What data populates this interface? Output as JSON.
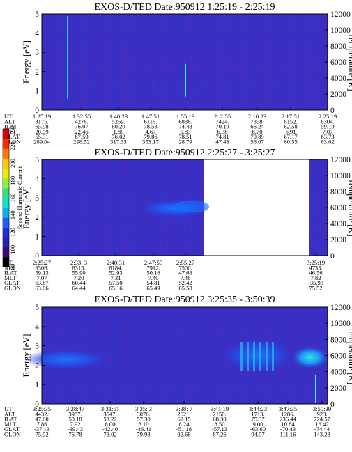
{
  "chart_data": [
    {
      "type": "heatmap",
      "title": "EXOS-D/TED   Date:950912  1:25:19 - 2:25:19",
      "ylabel": "Energy [eV]",
      "ylabel_right": "Temperature [K]",
      "ylim": [
        0,
        5
      ],
      "ylim_right": [
        0,
        12000
      ],
      "yticks": [
        "0",
        "1",
        "2",
        "3",
        "4",
        "5"
      ],
      "yticks_right": [
        "0",
        "2000",
        "4000",
        "6000",
        "8000",
        "10000",
        "12000"
      ],
      "table": {
        "row_labels": [
          "UT",
          "ALT",
          "ILAT",
          "MLT",
          "GLAT",
          "GLON"
        ],
        "columns": [
          [
            "1:25:19",
            "3175.",
            "65.98",
            "20.99",
            "55.31",
            "289.04"
          ],
          [
            "1:32:55",
            "4276.",
            "76.07",
            "22.46",
            "67.59",
            "298.52"
          ],
          [
            "1:40:23",
            "5259.",
            "80.29",
            "1.80",
            "76.02",
            "317.33"
          ],
          [
            "1:47:51",
            "6116.",
            "78.53",
            "4.67",
            "79.86",
            "353.17"
          ],
          [
            "1:55:19",
            "6836.",
            "74.48",
            "5.83",
            "78.51",
            "28.79"
          ],
          [
            "2: 2:55",
            "7424.",
            "70.19",
            "6.38",
            "74.81",
            "47.43"
          ],
          [
            "2:10:23",
            "7858.",
            "66.24",
            "6.70",
            "70.89",
            "56.07"
          ],
          [
            "2:17:51",
            "8152.",
            "62.58",
            "6.91",
            "67.17",
            "60.55"
          ],
          [
            "2:25:19",
            "8304.",
            "59.19",
            "7.07",
            "63.73",
            "63.02"
          ]
        ]
      }
    },
    {
      "type": "heatmap",
      "title": "EXOS-D/TED   Date:950912  2:25:27 - 3:25:27",
      "ylabel": "Energy [eV]",
      "ylabel_right": "Temperature [K]",
      "ylim": [
        0,
        5
      ],
      "ylim_right": [
        0,
        12000
      ],
      "yticks": [
        "0",
        "1",
        "2",
        "3",
        "4",
        "5"
      ],
      "yticks_right": [
        "0",
        "2000",
        "4000",
        "6000",
        "8000",
        "10000",
        "12000"
      ],
      "data_gap": true,
      "table": {
        "row_labels": [
          "UT",
          "ALT",
          "ILAT",
          "MLT",
          "GLAT",
          "GLON"
        ],
        "columns": [
          [
            "2:25:27",
            "8306.",
            "59.13",
            "7.07",
            "63.67",
            "63.06"
          ],
          [
            "2:33: 3",
            "8315.",
            "55.90",
            "7.20",
            "60.44",
            "64.44"
          ],
          [
            "2:40:31",
            "8184.",
            "52.93",
            "7.31",
            "57.50",
            "65.16"
          ],
          [
            "2:47:59",
            "7912.",
            "50.16",
            "7.40",
            "54.81",
            "65.49"
          ],
          [
            "2:55:27",
            "7500.",
            "47.68",
            "7.48",
            "52.42",
            "65.58"
          ],
          [
            "3:25:19",
            "4735.",
            "46.56",
            "7.82",
            "-35.93",
            "75.52"
          ]
        ]
      }
    },
    {
      "type": "heatmap",
      "title": "EXOS-D/TED   Date:950912  3:25:35 - 3:50:39",
      "ylabel": "Energy [eV]",
      "ylabel_right": "Temperature [K]",
      "ylim": [
        0,
        5
      ],
      "ylim_right": [
        0,
        12000
      ],
      "yticks": [
        "0",
        "1",
        "2",
        "3",
        "4",
        "5"
      ],
      "yticks_right": [
        "0",
        "2000",
        "4000",
        "6000",
        "8000",
        "10000",
        "12000"
      ],
      "table": {
        "row_labels": [
          "UT",
          "ALT",
          "ILAT",
          "MLT",
          "GLAT",
          "GLON"
        ],
        "columns": [
          [
            "3:25:35",
            "4432.",
            "47.80",
            "7.86",
            "-37.13",
            "75.92"
          ],
          [
            "3:28:47",
            "3987.",
            "50.18",
            "7.92",
            "-39.43",
            "76.78"
          ],
          [
            "3:31:51",
            "3547.",
            "53.22",
            "8.00",
            "-42.40",
            "78.02"
          ],
          [
            "3:35: 3",
            "3076.",
            "57.30",
            "8.10",
            "-46.41",
            "79.93"
          ],
          [
            "3:38: 7",
            "2621.",
            "62.15",
            "8.24",
            "-51.18",
            "82.68"
          ],
          [
            "3:41:19",
            "2150.",
            "68.30",
            "8.50",
            "-57.13",
            "87.26"
          ],
          [
            "3:44:23",
            "1713.",
            "75.37",
            "9.00",
            "-63.60",
            "94.97"
          ],
          [
            "3:47:35",
            "1286.",
            "236.44",
            "10.84",
            "-70.43",
            "111.16"
          ],
          [
            "3:50:39",
            "923.",
            "724.57",
            "16.42",
            "-74.44",
            "143.23"
          ]
        ]
      }
    }
  ],
  "colorbar": {
    "label": "Second Harmonic Current",
    "ticks": [
      "80",
      "100",
      "120",
      "140",
      "160",
      "180",
      "200",
      "220",
      "240"
    ],
    "colors": [
      "#000000",
      "#3c0a78",
      "#2a1fb4",
      "#1e2fe0",
      "#1463ff",
      "#00b4f0",
      "#00e6c8",
      "#28e678",
      "#8cf03c",
      "#e6f000",
      "#ffc800",
      "#ff7800",
      "#ff2800",
      "#dc0000"
    ]
  }
}
